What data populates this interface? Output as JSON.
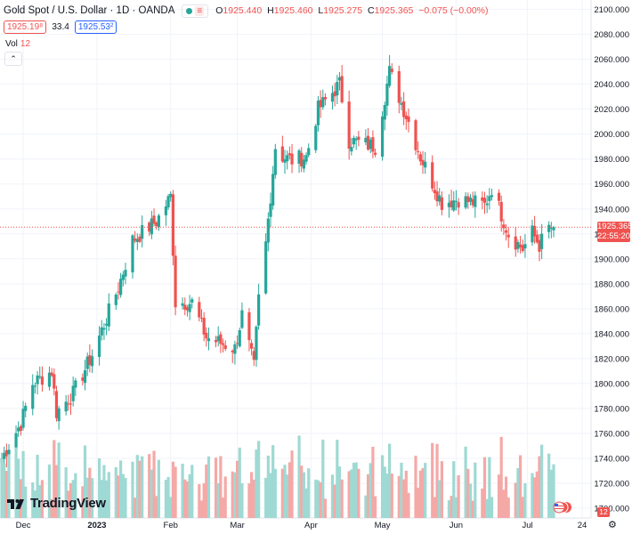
{
  "header": {
    "symbol_line": "Gold Spot / U.S. Dollar · 1D · OANDA",
    "indicator_toggle": "≡",
    "ohlc": [
      {
        "k": "O",
        "v": "1925.440"
      },
      {
        "k": "H",
        "v": "1925.460"
      },
      {
        "k": "L",
        "v": "1925.275"
      },
      {
        "k": "C",
        "v": "1925.365"
      },
      {
        "k": "",
        "v": "−0.075 (−0.00%)"
      }
    ],
    "sell": "1925.19⁸",
    "spread": "33.4",
    "buy": "1925.53²"
  },
  "volume_legend": {
    "label": "Vol",
    "value": "12"
  },
  "collapse_label": "⌃",
  "price_tag": {
    "price": "1925.365",
    "countdown": "22:55:20"
  },
  "volume_tag": "12",
  "brand": "TradingView",
  "colors": {
    "up": "#26a69a",
    "down": "#ef5350",
    "vol_up": "#9fd9d3",
    "vol_down": "#f4a9a7",
    "grid": "#f0f3fa",
    "price_line": "#ef5350"
  },
  "chart_data": {
    "type": "candlestick",
    "title": "Gold Spot / U.S. Dollar · 1D · OANDA",
    "y_ticks": [
      1700,
      1720,
      1740,
      1760,
      1780,
      1800,
      1820,
      1840,
      1860,
      1880,
      1900,
      1920,
      1940,
      1960,
      1980,
      2000,
      2020,
      2040,
      2060,
      2080,
      2100
    ],
    "y_tick_labels": [
      "1700.000",
      "1720.000",
      "1740.000",
      "1760.000",
      "1780.000",
      "1800.000",
      "1820.000",
      "1840.000",
      "1860.000",
      "1880.000",
      "1900.000",
      "1920.000",
      "1940.000",
      "1960.000",
      "1980.000",
      "2000.000",
      "2020.000",
      "2040.000",
      "2060.000",
      "2080.000",
      "2100.000"
    ],
    "ylim": [
      1700,
      2104
    ],
    "x_tick_labels": [
      "Dec",
      "2023",
      "Feb",
      "Mar",
      "Apr",
      "May",
      "Jun",
      "Jul",
      "24"
    ],
    "x_tick_dates": [
      "2022-12-01",
      "2023-01-01",
      "2023-02-01",
      "2023-03-01",
      "2023-04-01",
      "2023-05-01",
      "2023-06-01",
      "2023-07-01",
      "2023-07-24"
    ],
    "date_range": [
      "2022-11-22",
      "2023-07-12"
    ],
    "last_price": 1925.365,
    "close_path": [
      {
        "date": "2022-11-22",
        "close": 1740
      },
      {
        "date": "2022-11-30",
        "close": 1768
      },
      {
        "date": "2022-12-05",
        "close": 1800
      },
      {
        "date": "2022-12-13",
        "close": 1810
      },
      {
        "date": "2022-12-15",
        "close": 1777
      },
      {
        "date": "2022-12-22",
        "close": 1792
      },
      {
        "date": "2022-12-30",
        "close": 1823
      },
      {
        "date": "2023-01-10",
        "close": 1877
      },
      {
        "date": "2023-01-16",
        "close": 1915
      },
      {
        "date": "2023-01-26",
        "close": 1930
      },
      {
        "date": "2023-02-01",
        "close": 1950
      },
      {
        "date": "2023-02-03",
        "close": 1865
      },
      {
        "date": "2023-02-10",
        "close": 1865
      },
      {
        "date": "2023-02-16",
        "close": 1837
      },
      {
        "date": "2023-02-28",
        "close": 1828
      },
      {
        "date": "2023-03-03",
        "close": 1855
      },
      {
        "date": "2023-03-08",
        "close": 1813
      },
      {
        "date": "2023-03-10",
        "close": 1868
      },
      {
        "date": "2023-03-13",
        "close": 1912
      },
      {
        "date": "2023-03-17",
        "close": 1990
      },
      {
        "date": "2023-03-20",
        "close": 1982
      },
      {
        "date": "2023-03-24",
        "close": 1979
      },
      {
        "date": "2023-03-30",
        "close": 1982
      },
      {
        "date": "2023-04-04",
        "close": 2020
      },
      {
        "date": "2023-04-13",
        "close": 2040
      },
      {
        "date": "2023-04-17",
        "close": 1995
      },
      {
        "date": "2023-04-28",
        "close": 1990
      },
      {
        "date": "2023-05-03",
        "close": 2040
      },
      {
        "date": "2023-05-04",
        "close": 2050
      },
      {
        "date": "2023-05-12",
        "close": 2010
      },
      {
        "date": "2023-05-17",
        "close": 1982
      },
      {
        "date": "2023-05-26",
        "close": 1945
      },
      {
        "date": "2023-06-02",
        "close": 1948
      },
      {
        "date": "2023-06-13",
        "close": 1943
      },
      {
        "date": "2023-06-16",
        "close": 1957
      },
      {
        "date": "2023-06-23",
        "close": 1920
      },
      {
        "date": "2023-06-29",
        "close": 1908
      },
      {
        "date": "2023-07-03",
        "close": 1921
      },
      {
        "date": "2023-07-06",
        "close": 1911
      },
      {
        "date": "2023-07-10",
        "close": 1925
      }
    ]
  }
}
